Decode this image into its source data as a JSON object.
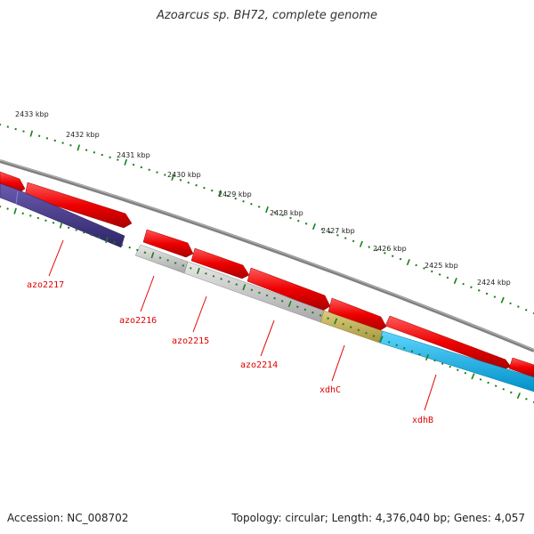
{
  "title": "Azoarcus sp. BH72, complete genome",
  "footer": {
    "accession": "Accession: NC_008702",
    "info": "Topology: circular; Length: 4,376,040 bp; Genes: 4,057"
  },
  "scale_labels": [
    "2433 kbp",
    "2432 kbp",
    "2431 kbp",
    "2430 kbp",
    "2429 kbp",
    "2428 kbp",
    "2427 kbp",
    "2426 kbp",
    "2425 kbp",
    "2424 kbp"
  ],
  "gene_labels": [
    "azo2217",
    "azo2216",
    "azo2215",
    "azo2214",
    "xdhC",
    "xdhB"
  ],
  "colors": {
    "forward": "#ee0000",
    "backbone": "#808080",
    "azo2217": "#4b3c8e",
    "hypothetical": "#c4c4c4",
    "xdhC": "#c8b55a",
    "xdhB": "#0ab6f0",
    "tick": "#1a7f1a",
    "label": "#e00000"
  }
}
